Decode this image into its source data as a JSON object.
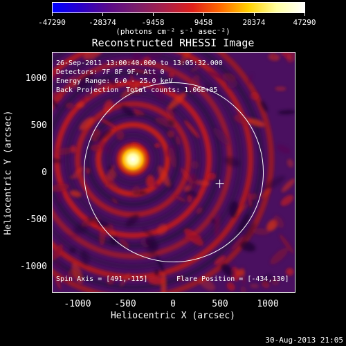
{
  "colorbar": {
    "tick_labels": [
      "-47290",
      "-28374",
      "-9458",
      "9458",
      "28374",
      "47290"
    ],
    "units": "(photons cm⁻² s⁻¹ asec⁻²)",
    "colors": [
      "#0000ff",
      "#2a00c8",
      "#5a0a8a",
      "#7a1e6a",
      "#a8204a",
      "#e0201a",
      "#ff6a00",
      "#ffd000",
      "#ffffa0",
      "#ffffff"
    ]
  },
  "title": "Reconstructed RHESSI Image",
  "info": {
    "time_range": "26-Sep-2011 13:00:40.000 to 13:05:32.000",
    "detectors": "Detectors: 7F 8F 9F, Att 0",
    "energy": "Energy Range: 6.0 - 25.0 keV",
    "method": "Back Projection",
    "counts": "Total counts: 1.06E+05",
    "spin_axis": "Spin Axis = [491,-115]",
    "flare_position": "Flare Position = [-434,130]"
  },
  "axes": {
    "xlabel": "Heliocentric X (arcsec)",
    "ylabel": "Heliocentric Y (arcsec)",
    "x_ticks": [
      "-1000",
      "-500",
      "0",
      "500",
      "1000"
    ],
    "y_ticks": [
      "1000",
      "500",
      "0",
      "-500",
      "-1000"
    ]
  },
  "timestamp": "30-Aug-2013 21:05",
  "image": {
    "xlim": [
      -1290,
      1290
    ],
    "ylim": [
      -1200,
      1200
    ],
    "source_center": [
      -434,
      130
    ],
    "spin_axis": [
      491,
      -115
    ],
    "solar_radius_arcsec": 955,
    "peak_value": 47290
  }
}
